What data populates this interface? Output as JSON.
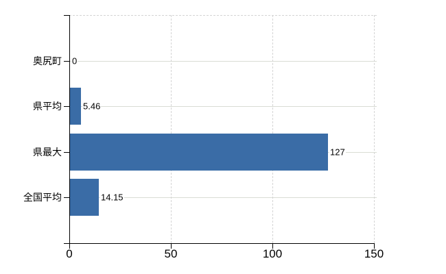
{
  "chart_data": {
    "type": "bar",
    "orientation": "horizontal",
    "categories": [
      "奥尻町",
      "県平均",
      "県最大",
      "全国平均"
    ],
    "values": [
      0,
      5.46,
      127,
      14.15
    ],
    "value_labels": [
      "0",
      "5.46",
      "127",
      "14.15"
    ],
    "x_ticks": [
      0,
      50,
      100,
      150
    ],
    "x_tick_labels": [
      "0",
      "50",
      "100",
      "150"
    ],
    "xlim": [
      0,
      150
    ],
    "title": "",
    "xlabel": "",
    "ylabel": "",
    "grid": {
      "vertical_gridlines": "dashed",
      "horizontal_gridlines": "solid",
      "plot_top_border": "dashed"
    },
    "legend_position": "none"
  },
  "colors": {
    "bar": "#3a6ca6",
    "axis": "#000000",
    "gridline_solid": "#d9dcd4",
    "gridline_dashed": "#d4d4d4",
    "text": "#000000",
    "background": "#ffffff"
  }
}
